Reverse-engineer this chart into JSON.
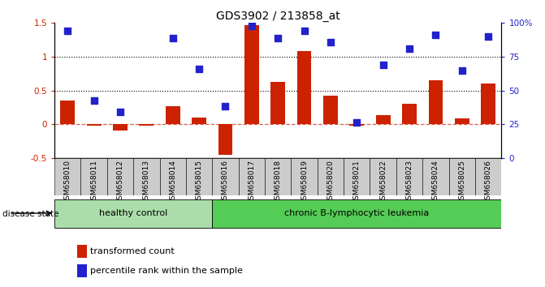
{
  "title": "GDS3902 / 213858_at",
  "samples": [
    "GSM658010",
    "GSM658011",
    "GSM658012",
    "GSM658013",
    "GSM658014",
    "GSM658015",
    "GSM658016",
    "GSM658017",
    "GSM658018",
    "GSM658019",
    "GSM658020",
    "GSM658021",
    "GSM658022",
    "GSM658023",
    "GSM658024",
    "GSM658025",
    "GSM658026"
  ],
  "bar_values": [
    0.35,
    -0.02,
    -0.1,
    -0.02,
    0.26,
    0.1,
    -0.46,
    1.47,
    0.63,
    1.08,
    0.42,
    -0.02,
    0.13,
    0.3,
    0.65,
    0.09,
    0.6
  ],
  "dot_values": [
    1.38,
    0.35,
    0.18,
    null,
    1.28,
    0.82,
    0.27,
    1.45,
    1.28,
    1.38,
    1.22,
    0.03,
    0.88,
    1.12,
    1.32,
    0.8,
    1.3
  ],
  "bar_color": "#cc2200",
  "dot_color": "#2222cc",
  "ylim_left": [
    -0.5,
    1.5
  ],
  "ylim_right": [
    0,
    100
  ],
  "right_ticks": [
    0,
    25,
    50,
    75,
    100
  ],
  "right_tick_labels": [
    "0",
    "25",
    "50",
    "75",
    "100%"
  ],
  "left_ticks": [
    -0.5,
    0.0,
    0.5,
    1.0,
    1.5
  ],
  "left_tick_labels": [
    "-0.5",
    "0",
    "0.5",
    "1",
    "1.5"
  ],
  "dotted_lines": [
    0.5,
    1.0
  ],
  "dashed_line": 0.0,
  "healthy_count": 6,
  "group1_label": "healthy control",
  "group2_label": "chronic B-lymphocytic leukemia",
  "disease_state_label": "disease state",
  "legend_bar_label": "transformed count",
  "legend_dot_label": "percentile rank within the sample",
  "group1_color": "#aaddaa",
  "group2_color": "#55cc55",
  "bg_color": "#ffffff",
  "tick_area_color": "#cccccc"
}
